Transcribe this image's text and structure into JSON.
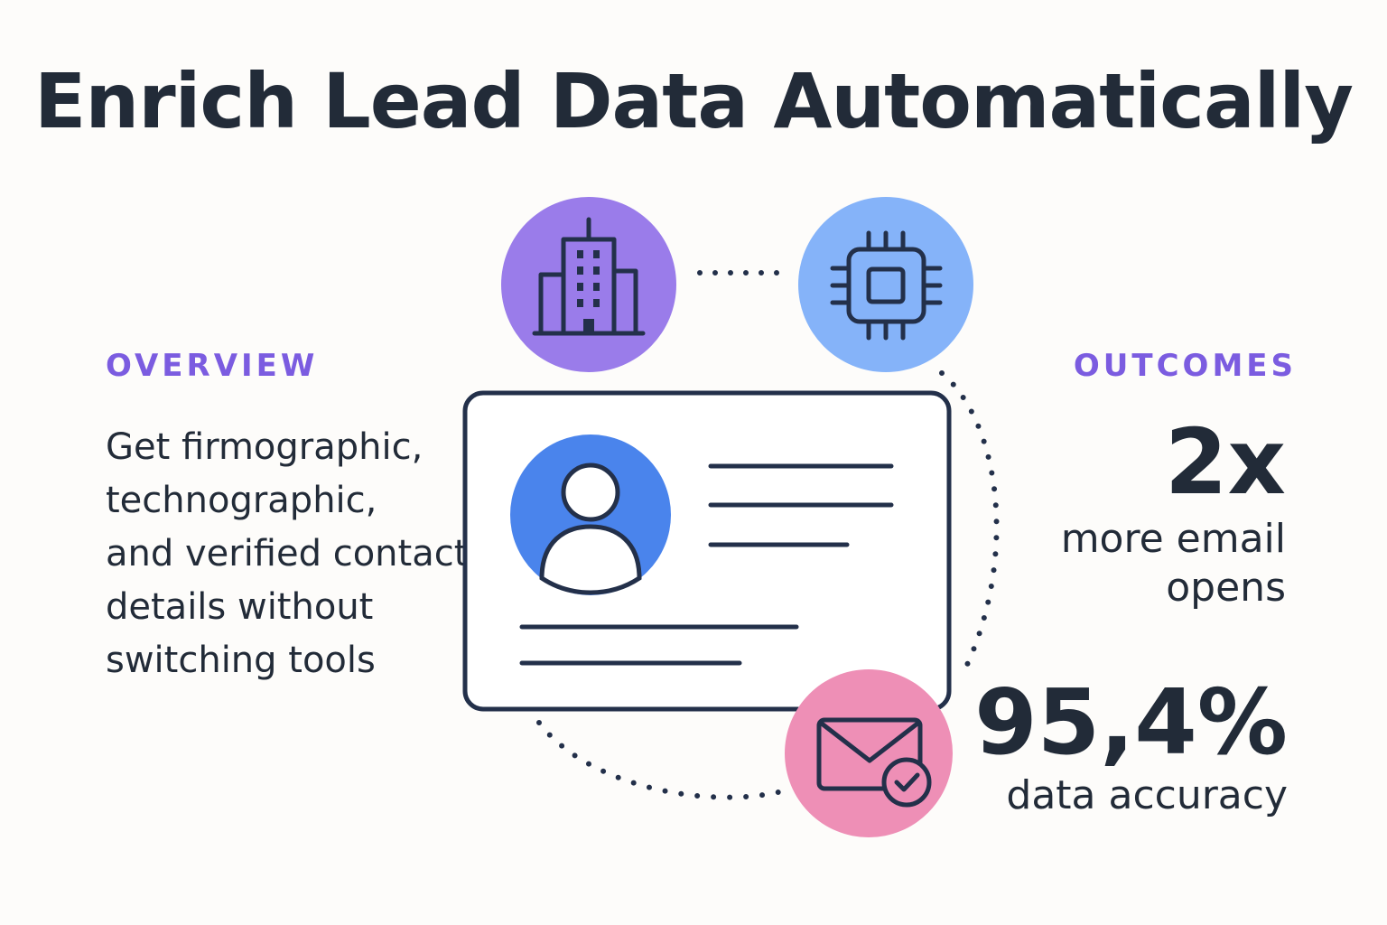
{
  "title": "Enrich Lead Data Automatically",
  "overview": {
    "label": "OVERVIEW",
    "lines": [
      "Get firmographic,",
      "technographic,",
      "and verified contact",
      "details without",
      "switching tools"
    ]
  },
  "outcomes": {
    "label": "OUTCOMES",
    "stats": [
      {
        "value": "2x",
        "desc_lines": [
          "more email",
          "opens"
        ]
      },
      {
        "value": "95,4%",
        "desc_lines": [
          "data accuracy"
        ]
      }
    ]
  },
  "icons": {
    "building": "building-icon",
    "chip": "chip-icon",
    "contact_card": "contact-card-icon",
    "user_avatar": "user-avatar-icon",
    "envelope_check": "envelope-check-icon"
  },
  "colors": {
    "title": "#222b38",
    "accent": "#7b5ce0",
    "building_circle": "#9a7cea",
    "chip_circle": "#85b3f9",
    "avatar_circle": "#4a84ec",
    "envelope_circle": "#ee8fb6",
    "stroke": "#23304a"
  }
}
